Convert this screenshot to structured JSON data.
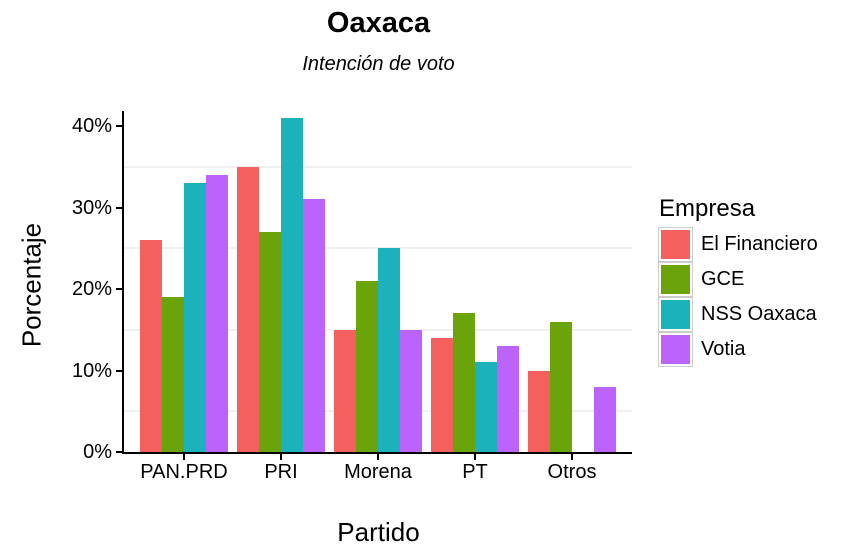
{
  "title": "Oaxaca",
  "subtitle": "Intención de voto",
  "chart_data": {
    "type": "bar",
    "title": "Oaxaca",
    "subtitle": "Intención de voto",
    "xlabel": "Partido",
    "ylabel": "Porcentaje",
    "categories": [
      "PAN.PRD",
      "PRI",
      "Morena",
      "PT",
      "Otros"
    ],
    "series": [
      {
        "name": "El Financiero",
        "color": "#F4605D",
        "values": [
          26,
          35,
          15,
          14,
          10
        ]
      },
      {
        "name": "GCE",
        "color": "#6BA30B",
        "values": [
          19,
          27,
          21,
          17,
          16
        ]
      },
      {
        "name": "NSS Oaxaca",
        "color": "#1CB2BC",
        "values": [
          33,
          41,
          25,
          11,
          null
        ]
      },
      {
        "name": "Votia",
        "color": "#BB63FB",
        "values": [
          34,
          31,
          15,
          13,
          8
        ]
      }
    ],
    "ylim": [
      0,
      42
    ],
    "y_tick_values": [
      0,
      10,
      20,
      30,
      40
    ],
    "y_tick_labels": [
      "0%",
      "10%",
      "20%",
      "30%",
      "40%"
    ],
    "minor_gridline_values": [
      5,
      15,
      25,
      35
    ],
    "grid": "minor-only",
    "legend_title": "Empresa",
    "legend_position": "right",
    "bar_grouping": "dodged",
    "axis_color": "#000000",
    "background_color": "#ffffff",
    "minor_gridline_color": "#f0f0f0"
  }
}
